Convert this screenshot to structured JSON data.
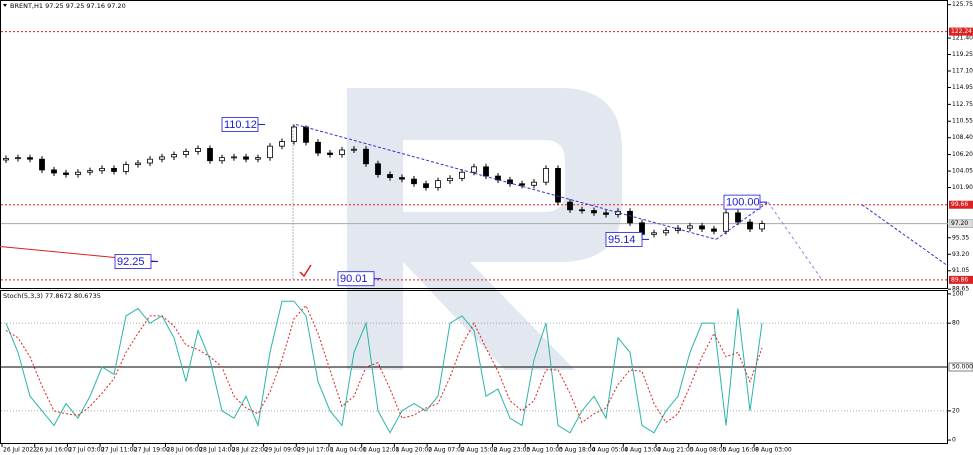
{
  "chart_data": [
    {
      "type": "candlestick",
      "title": "BRENT,H1 97.25 97.25 97.16 97.20",
      "open": [
        105.5,
        105.7,
        105.8,
        105.6,
        104.2,
        103.8,
        103.6,
        103.9,
        104.1,
        104.4,
        104.0,
        104.9,
        105.1,
        105.6,
        105.9,
        106.2,
        106.6,
        107.0,
        105.4,
        105.8,
        105.9,
        105.6,
        105.8,
        107.3,
        107.9,
        109.8,
        107.8,
        106.4,
        106.2,
        106.8,
        106.9,
        105.0,
        103.6,
        103.2,
        103.0,
        102.4,
        101.9,
        102.8,
        103.1,
        103.9,
        104.6,
        103.4,
        102.9,
        102.4,
        102.2,
        102.6,
        104.4,
        100.0,
        99.0,
        98.9,
        98.6,
        98.4,
        98.8,
        97.3,
        95.8,
        96.0,
        96.3,
        96.6,
        96.9,
        96.5,
        96.2,
        98.6,
        97.4,
        96.5
      ],
      "high": [
        106.1,
        106.2,
        106.2,
        106.0,
        104.6,
        104.2,
        104.3,
        104.5,
        104.8,
        104.8,
        105.3,
        105.5,
        106.0,
        106.3,
        106.6,
        107.0,
        107.4,
        107.4,
        106.2,
        106.3,
        106.3,
        106.2,
        107.7,
        108.3,
        110.1,
        110.0,
        108.2,
        106.8,
        107.2,
        107.3,
        107.3,
        105.4,
        104.0,
        103.6,
        103.4,
        102.8,
        103.2,
        103.5,
        104.3,
        105.0,
        105.0,
        103.8,
        103.3,
        102.8,
        103.0,
        104.8,
        104.8,
        100.4,
        99.4,
        99.3,
        99.0,
        99.2,
        99.2,
        97.7,
        96.4,
        96.7,
        97.0,
        97.3,
        97.3,
        96.9,
        99.0,
        99.0,
        97.8,
        97.6
      ],
      "low": [
        105.1,
        105.3,
        105.2,
        103.8,
        103.4,
        103.2,
        103.2,
        103.5,
        103.7,
        103.6,
        103.6,
        104.5,
        104.7,
        105.2,
        105.5,
        105.8,
        106.2,
        105.0,
        105.0,
        105.4,
        105.2,
        105.2,
        105.4,
        106.9,
        107.5,
        107.4,
        106.0,
        105.8,
        105.8,
        106.4,
        104.6,
        103.2,
        102.8,
        102.6,
        102.0,
        101.5,
        101.5,
        102.4,
        102.7,
        103.5,
        103.0,
        102.5,
        102.0,
        101.8,
        101.8,
        102.2,
        99.6,
        98.6,
        98.5,
        98.2,
        98.0,
        98.0,
        96.9,
        95.1,
        95.4,
        95.6,
        95.9,
        96.2,
        96.1,
        95.8,
        95.8,
        97.0,
        96.1,
        96.1
      ],
      "close": [
        105.7,
        105.8,
        105.6,
        104.2,
        103.8,
        103.6,
        103.9,
        104.1,
        104.4,
        104.0,
        104.9,
        105.1,
        105.6,
        105.9,
        106.2,
        106.6,
        107.0,
        105.4,
        105.8,
        105.9,
        105.6,
        105.8,
        107.3,
        107.9,
        109.8,
        107.8,
        106.4,
        106.2,
        106.8,
        106.9,
        105.0,
        103.6,
        103.2,
        103.0,
        102.4,
        101.9,
        102.8,
        103.1,
        103.9,
        104.6,
        103.4,
        102.9,
        102.4,
        102.2,
        102.6,
        104.4,
        100.0,
        99.0,
        98.9,
        98.6,
        98.4,
        98.8,
        97.3,
        95.8,
        96.0,
        96.3,
        96.6,
        96.9,
        96.5,
        96.2,
        98.6,
        97.4,
        96.5,
        97.2
      ],
      "ylim": [
        88.8,
        126.1
      ],
      "yticks": [
        125.75,
        {
          "value": 121.4,
          "label": "121.40"
        },
        119.25,
        {
          "value": 117.1,
          "label": "117.10"
        },
        114.95,
        112.75,
        110.55,
        {
          "value": 108.4,
          "label": "108.40"
        },
        {
          "value": 106.2,
          "label": "106.20"
        },
        104.05,
        {
          "value": 101.9,
          "label": "101.90"
        },
        95.35,
        {
          "value": 93.2,
          "label": "93.20"
        },
        91.05,
        88.65
      ],
      "levels": [
        122.24,
        99.66,
        89.86
      ],
      "level_color": "#e02020",
      "current_price": {
        "value": 97.2,
        "label": "97.20"
      },
      "annotations": [
        110.12,
        92.25,
        90.01,
        95.14,
        {
          "value": 100,
          "label": "100.00"
        }
      ],
      "xtick_labels": [
        "26 Jul 2022",
        "26 Jul 16:00",
        "27 Jul 03:00",
        "27 Jul 11:00",
        "27 Jul 19:00",
        "28 Jul 06:00",
        "28 Jul 14:00",
        "28 Jul 22:00",
        "29 Jul 09:00",
        "29 Jul 17:00",
        "1 Aug 04:00",
        "1 Aug 12:00",
        "1 Aug 20:00",
        "2 Aug 07:00",
        "2 Aug 15:00",
        "2 Aug 23:00",
        "3 Aug 10:00",
        "3 Aug 18:00",
        "4 Aug 05:00",
        "4 Aug 13:00",
        "4 Aug 21:00",
        "5 Aug 08:00",
        "5 Aug 16:00",
        "8 Aug 03:00"
      ]
    },
    {
      "type": "stochastic",
      "title": "Stoch(5,3,3) 77.8672 80.6735",
      "series": [
        {
          "color": "#2ab5a8",
          "values": [
            80,
            60,
            30,
            20,
            10,
            25,
            15,
            30,
            50,
            45,
            85,
            90,
            80,
            85,
            70,
            40,
            75,
            55,
            20,
            15,
            30,
            10,
            60,
            95,
            95,
            85,
            40,
            20,
            10,
            60,
            80,
            20,
            5,
            20,
            25,
            20,
            30,
            80,
            85,
            75,
            30,
            35,
            15,
            10,
            55,
            80,
            10,
            5,
            20,
            30,
            15,
            70,
            60,
            10,
            5,
            20,
            30,
            60,
            80,
            80,
            10,
            90,
            20,
            80
          ]
        },
        {
          "color": "#e02020",
          "values": [
            75,
            70,
            57,
            37,
            20,
            18,
            17,
            23,
            32,
            42,
            60,
            73,
            85,
            85,
            78,
            65,
            62,
            57,
            50,
            30,
            22,
            18,
            33,
            55,
            83,
            92,
            73,
            48,
            23,
            30,
            50,
            53,
            35,
            15,
            17,
            22,
            25,
            43,
            65,
            80,
            63,
            47,
            27,
            20,
            27,
            48,
            48,
            32,
            12,
            18,
            22,
            38,
            48,
            47,
            25,
            12,
            18,
            37,
            57,
            73,
            57,
            60,
            40,
            63
          ]
        }
      ],
      "ylim": [
        -2,
        102
      ],
      "yticks": [
        100,
        80,
        {
          "value": 50,
          "label": "50.0000"
        },
        20,
        0
      ]
    }
  ]
}
